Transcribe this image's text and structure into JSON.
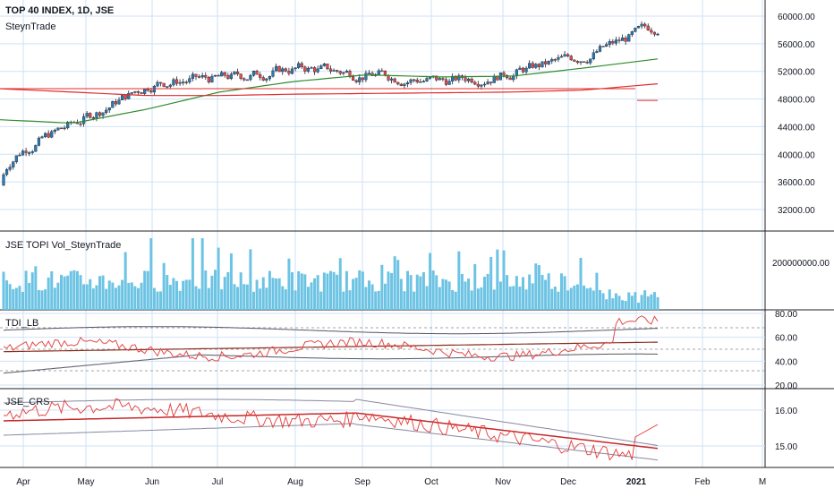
{
  "header": {
    "title": "TOP 40 INDEX, 1D, JSE",
    "author": "SteynTrade"
  },
  "colors": {
    "grid": "#cfe2f5",
    "candle_up": "#2a7ab3",
    "candle_down": "#e64949",
    "wick": "#1f2430",
    "green_ma": "#2e8b2e",
    "red_line": "#e32b2b",
    "volume": "#6cc3e3",
    "tdi_green": "#8b2e1f",
    "tdi_band": "#555566",
    "crs_band": "#8888a0",
    "crs_ma": "#c62828",
    "crs_price": "#e53935",
    "axis_text": "#131722",
    "pane_border": "#222222"
  },
  "x_axis": {
    "labels": [
      "Apr",
      "May",
      "Jun",
      "Jul",
      "Aug",
      "Sep",
      "Oct",
      "Nov",
      "Dec",
      "2021",
      "Feb",
      "M"
    ]
  },
  "panes": {
    "price": {
      "y_labels": [
        "60000.00",
        "56000.00",
        "52000.00",
        "48000.00",
        "44000.00",
        "40000.00",
        "36000.00",
        "32000.00"
      ]
    },
    "volume": {
      "title": "JSE TOPI Vol_SteynTrade",
      "y_labels": [
        "200000000.00"
      ]
    },
    "tdi": {
      "title": "TDI_LB",
      "y_labels": [
        "80.00",
        "60.00",
        "40.00",
        "20.00"
      ]
    },
    "crs": {
      "title": "JSE_CRS",
      "y_labels": [
        "16.00",
        "15.00"
      ]
    }
  },
  "chart_data": [
    {
      "type": "candlestick",
      "title": "TOP 40 INDEX, 1D, JSE",
      "ylim": [
        32000,
        60000
      ],
      "x": [
        "Apr",
        "May",
        "Jun",
        "Jul",
        "Aug",
        "Sep",
        "Oct",
        "Nov",
        "Dec",
        "2021"
      ],
      "close_trend": [
        40000,
        45000,
        50500,
        51000,
        52500,
        51500,
        50500,
        52000,
        54500,
        59000
      ],
      "series": [
        {
          "values": [
            45000,
            44500,
            46500,
            49000,
            50500,
            51500,
            51200,
            51300,
            52500,
            53800
          ]
        },
        {
          "values": [
            49500,
            49000,
            48500,
            48500,
            48700,
            48800,
            48900,
            49000,
            49300,
            50200
          ]
        }
      ]
    },
    {
      "type": "bar",
      "title": "JSE TOPI Vol_SteynTrade",
      "values_unit": "shares",
      "reference_label": "200000000.00"
    },
    {
      "type": "line",
      "title": "TDI_LB",
      "ylim": [
        20,
        80
      ],
      "reference_levels": [
        32,
        50,
        68
      ]
    },
    {
      "type": "line",
      "title": "JSE_CRS",
      "ylim": [
        14.5,
        16.5
      ]
    }
  ]
}
